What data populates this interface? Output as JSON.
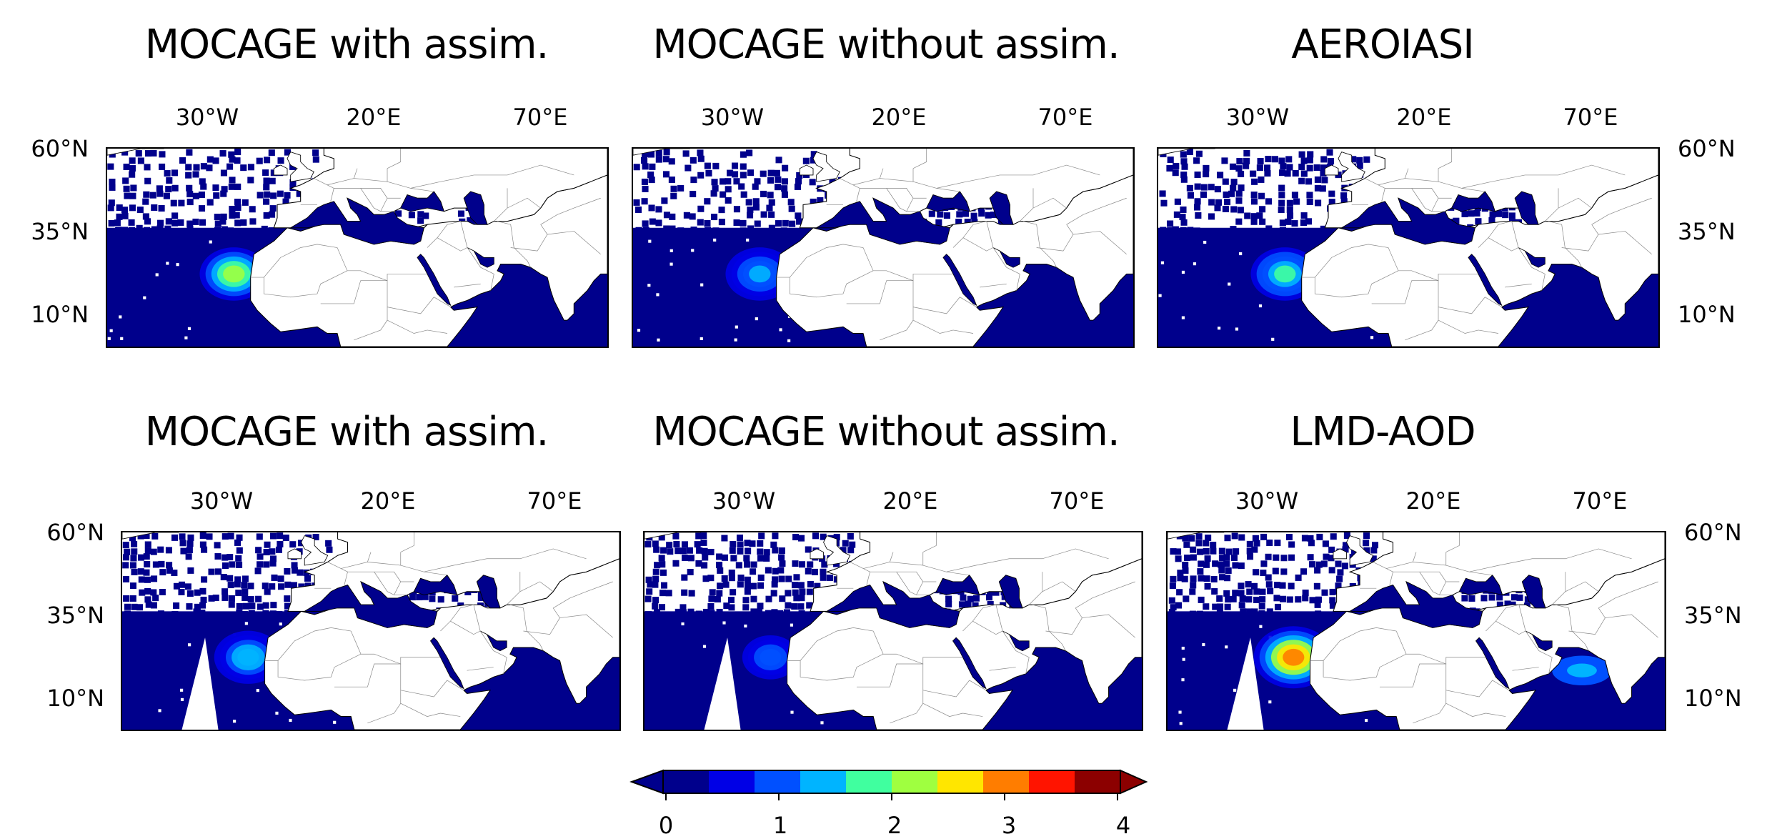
{
  "colors": {
    "ocean_dust": "#00008c",
    "land": "#ffffff",
    "border": "#888888",
    "coast": "#000000"
  },
  "axes": {
    "lon_ticks": [
      "30°W",
      "20°E",
      "70°E"
    ],
    "lat_ticks": [
      "60°N",
      "35°N",
      "10°N"
    ]
  },
  "panels": [
    {
      "title": "MOCAGE with assim.",
      "plume_peak": 2.0,
      "variant": "iasi-swath"
    },
    {
      "title": "MOCAGE without assim.",
      "plume_peak": 1.4,
      "variant": "iasi-swath"
    },
    {
      "title": "AEROIASI",
      "plume_peak": 1.6,
      "variant": "iasi-swath"
    },
    {
      "title": "MOCAGE with assim.",
      "plume_peak": 1.5,
      "variant": "lmd-swath"
    },
    {
      "title": "MOCAGE without assim.",
      "plume_peak": 1.2,
      "variant": "lmd-swath"
    },
    {
      "title": "LMD-AOD",
      "plume_peak": 3.0,
      "variant": "lmd-swath"
    }
  ],
  "colorbar": {
    "ticks": [
      "0",
      "1",
      "2",
      "3",
      "4"
    ],
    "min": 0,
    "max": 4,
    "extend": "both",
    "colors": [
      "#00008c",
      "#0000e6",
      "#0050ff",
      "#00b4ff",
      "#40ff9f",
      "#9fff40",
      "#ffe600",
      "#ff7d00",
      "#ff1400",
      "#8c0000"
    ]
  }
}
